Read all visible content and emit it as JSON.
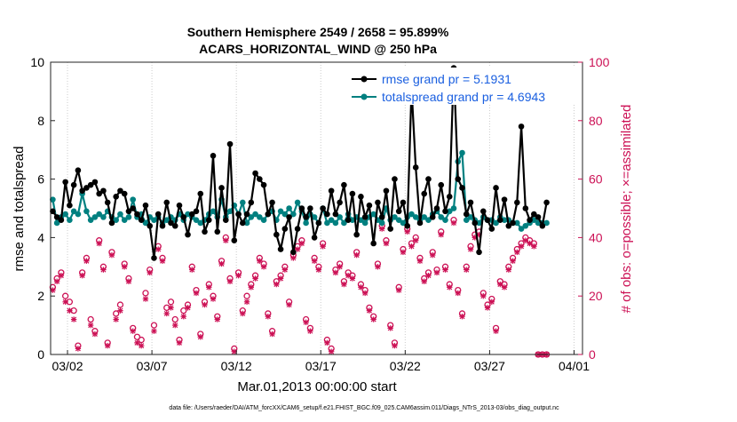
{
  "chart_data": {
    "type": "line",
    "title": "Southern Hemisphere 2549 / 2658 = 95.899%",
    "subtitle": "ACARS_HORIZONTAL_WIND @ 250 hPa",
    "xlabel": "Mar.01,2013 00:00:00 start",
    "ylabel_left": "rmse and totalspread",
    "ylabel_right": "# of obs: o=possible; ×=assimilated",
    "footer": "data file: /Users/raeder/DAI/ATM_forcXX/CAM6_setup/f.e21.FHIST_BGC.f09_025.CAM6assim.011/Diags_NTrS_2013-03/obs_diag_output.nc",
    "x_range": [
      0,
      31.5
    ],
    "y_left_range": [
      0,
      10
    ],
    "y_right_range": [
      0,
      100
    ],
    "x_ticks": [
      {
        "value": 1,
        "label": "03/02"
      },
      {
        "value": 6,
        "label": "03/07"
      },
      {
        "value": 11,
        "label": "03/12"
      },
      {
        "value": 16,
        "label": "03/17"
      },
      {
        "value": 21,
        "label": "03/22"
      },
      {
        "value": 26,
        "label": "03/27"
      },
      {
        "value": 31,
        "label": "04/01"
      }
    ],
    "y_left_ticks": [
      0,
      2,
      4,
      6,
      8,
      10
    ],
    "y_right_ticks": [
      0,
      20,
      40,
      60,
      80,
      100
    ],
    "grid": "x-only",
    "legend": [
      {
        "label": "rmse grand pr = 5.1931",
        "color": "#000000",
        "marker": "filled-circle"
      },
      {
        "label": "totalspread grand pr = 4.6943",
        "color": "#008080",
        "marker": "filled-circle"
      }
    ],
    "legend_position": "top-right",
    "colors": {
      "rmse": "#000000",
      "spread": "#008080",
      "obs": "#cc1155",
      "grid": "#cccccc",
      "legend_text": "#1a5fe0"
    },
    "time_step": 0.25,
    "time_start": 0.125,
    "series": [
      {
        "name": "rmse",
        "values": [
          4.9,
          4.7,
          4.6,
          5.9,
          5.1,
          5.8,
          6.3,
          5.6,
          5.7,
          5.8,
          5.9,
          5.5,
          5.6,
          5.2,
          4.5,
          5.4,
          5.6,
          5.5,
          4.9,
          5.0,
          4.8,
          4.6,
          5.1,
          4.4,
          3.3,
          4.8,
          4.4,
          5.2,
          4.5,
          4.4,
          5.1,
          4.7,
          4.1,
          4.8,
          4.9,
          5.5,
          4.2,
          4.6,
          6.8,
          4.2,
          5.7,
          4.6,
          7.2,
          3.9,
          4.8,
          4.5,
          4.8,
          5.2,
          6.2,
          6.0,
          5.8,
          4.8,
          5.2,
          4.1,
          3.6,
          4.3,
          4.7,
          3.5,
          4.3,
          5.0,
          4.7,
          5.0,
          4.0,
          4.5,
          5.0,
          4.8,
          5.6,
          4.8,
          5.2,
          5.8,
          4.6,
          5.5,
          4.1,
          5.4,
          4.7,
          5.1,
          3.8,
          5.2,
          4.7,
          5.6,
          4.3,
          6.0,
          4.9,
          5.2,
          4.4,
          9.1,
          6.4,
          4.5,
          5.5,
          6.0,
          4.7,
          5.0,
          5.8,
          4.9,
          5.4,
          9.8,
          6.0,
          5.7,
          4.8,
          5.2,
          4.5,
          3.5,
          4.9,
          4.6,
          4.3,
          5.7,
          4.6,
          5.3,
          4.4,
          4.5,
          5.2,
          7.8,
          5.0,
          4.6,
          4.8,
          4.7,
          4.4,
          5.2
        ]
      },
      {
        "name": "totalspread",
        "values": [
          5.3,
          4.5,
          4.7,
          4.8,
          4.6,
          4.9,
          4.8,
          5.5,
          4.9,
          4.6,
          4.7,
          4.8,
          4.7,
          4.9,
          4.7,
          4.6,
          4.8,
          4.6,
          4.7,
          5.3,
          4.7,
          4.8,
          4.5,
          4.7,
          4.6,
          4.7,
          4.5,
          4.6,
          4.7,
          4.6,
          4.8,
          4.6,
          4.8,
          4.7,
          4.6,
          4.5,
          4.6,
          4.8,
          4.9,
          4.7,
          5.3,
          4.7,
          4.9,
          5.1,
          4.8,
          5.2,
          4.5,
          4.7,
          4.8,
          4.7,
          4.6,
          4.8,
          4.9,
          4.6,
          4.9,
          4.8,
          5.0,
          4.8,
          5.2,
          4.9,
          4.5,
          4.8,
          4.7,
          4.5,
          5.0,
          4.5,
          4.6,
          4.5,
          4.7,
          4.5,
          4.8,
          4.6,
          4.7,
          4.6,
          4.5,
          4.7,
          4.8,
          4.6,
          4.5,
          5.0,
          4.6,
          4.7,
          4.6,
          4.5,
          4.7,
          4.8,
          4.7,
          4.6,
          4.7,
          4.6,
          4.8,
          4.9,
          4.7,
          4.6,
          4.9,
          5.0,
          6.6,
          6.9,
          4.6,
          4.7,
          4.6,
          4.5,
          4.7,
          4.6,
          4.6,
          4.5,
          4.7,
          4.6,
          4.6,
          4.5,
          4.5,
          4.3,
          4.4,
          4.5,
          4.6,
          4.5,
          4.5,
          4.5
        ]
      },
      {
        "name": "obs_possible",
        "axis": "right",
        "values": [
          23,
          26,
          28,
          20,
          18,
          15,
          3,
          28,
          33,
          12,
          8,
          39,
          30,
          4,
          35,
          14,
          17,
          31,
          26,
          9,
          6,
          5,
          21,
          29,
          10,
          37,
          33,
          16,
          18,
          12,
          5,
          15,
          17,
          30,
          22,
          7,
          18,
          24,
          20,
          13,
          32,
          40,
          26,
          2,
          28,
          15,
          20,
          24,
          27,
          33,
          31,
          14,
          8,
          25,
          27,
          30,
          18,
          34,
          37,
          39,
          12,
          9,
          33,
          30,
          38,
          5,
          2,
          29,
          31,
          25,
          28,
          27,
          35,
          24,
          22,
          16,
          13,
          31,
          44,
          39,
          10,
          4,
          23,
          36,
          43,
          38,
          40,
          33,
          26,
          28,
          35,
          29,
          42,
          30,
          24,
          46,
          22,
          14,
          30,
          37,
          41,
          42,
          21,
          17,
          19,
          9,
          25,
          24,
          30,
          33,
          36,
          38,
          40,
          39,
          38,
          0,
          0,
          0
        ]
      },
      {
        "name": "obs_assimilated",
        "axis": "right",
        "values": [
          22,
          25,
          27,
          18,
          15,
          12,
          2,
          27,
          32,
          10,
          7,
          38,
          29,
          3,
          34,
          12,
          15,
          30,
          25,
          8,
          4,
          3,
          19,
          28,
          8,
          36,
          32,
          14,
          16,
          10,
          4,
          13,
          16,
          29,
          21,
          6,
          17,
          23,
          19,
          12,
          31,
          39,
          25,
          1,
          27,
          14,
          18,
          23,
          26,
          32,
          30,
          13,
          7,
          24,
          26,
          29,
          17,
          33,
          36,
          38,
          11,
          8,
          32,
          29,
          37,
          4,
          1,
          28,
          30,
          24,
          27,
          26,
          34,
          23,
          21,
          15,
          12,
          30,
          43,
          38,
          9,
          3,
          22,
          35,
          42,
          37,
          39,
          32,
          25,
          27,
          34,
          28,
          41,
          29,
          23,
          45,
          21,
          13,
          29,
          36,
          40,
          41,
          20,
          16,
          18,
          8,
          24,
          23,
          29,
          32,
          35,
          37,
          39,
          38,
          37,
          0,
          0,
          0
        ]
      }
    ]
  }
}
